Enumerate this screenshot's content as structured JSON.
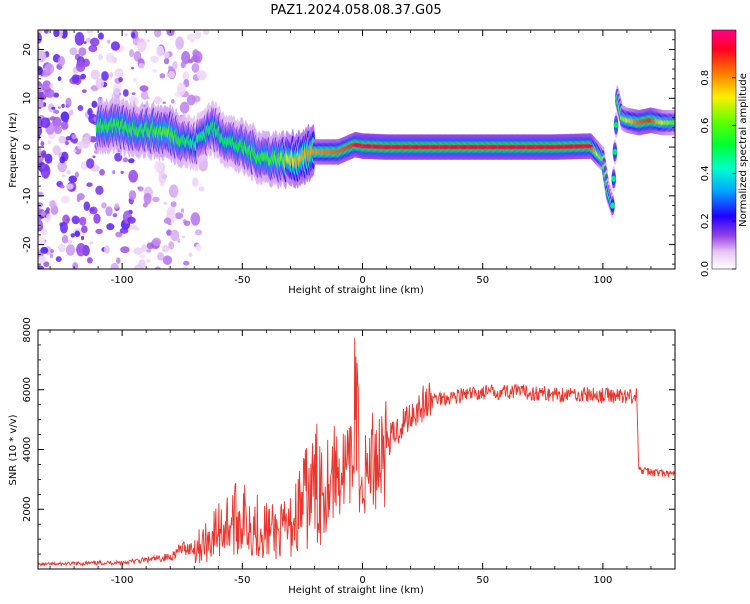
{
  "page_title": "PAZ1.2024.058.08.37.G05",
  "colors": {
    "snr_line": "#e8352e",
    "frame": "#000000",
    "background": "#ffffff"
  },
  "chart_data": [
    {
      "type": "heatmap",
      "title": "PAZ1.2024.058.08.37.G05",
      "xlabel": "Height of straight line (km)",
      "ylabel": "Frequency (Hz)",
      "xlim": [
        -135,
        130
      ],
      "ylim": [
        -25,
        24
      ],
      "x_ticks": [
        -100,
        -50,
        0,
        50,
        100
      ],
      "y_ticks": [
        -20,
        -10,
        0,
        10,
        20
      ],
      "colorbar": {
        "label": "Normalized spectral amplitude",
        "range": [
          0,
          1
        ],
        "ticks": [
          "0.0",
          "0.2",
          "0.4",
          "0.6",
          "0.8"
        ],
        "colormap": "gist_rainbow_r"
      },
      "ridge": {
        "x": [
          -110,
          -100,
          -90,
          -80,
          -70,
          -63,
          -55,
          -48,
          -42,
          -35,
          -28,
          -20,
          -10,
          -3,
          0,
          10,
          20,
          40,
          60,
          80,
          95,
          100,
          102,
          104,
          106,
          108,
          110,
          115,
          120,
          125,
          130
        ],
        "freq": [
          4.5,
          4.0,
          3.5,
          2.8,
          0.5,
          4.0,
          1.0,
          -0.5,
          -2.0,
          -2.5,
          -2.5,
          -1.0,
          -1.0,
          0.5,
          0.2,
          0.0,
          0.0,
          0.0,
          0.0,
          0.0,
          0.2,
          -2.5,
          -9.0,
          -12.0,
          10.0,
          6.0,
          5.5,
          5.0,
          5.5,
          5.0,
          5.0
        ],
        "amplitude": [
          0.55,
          0.55,
          0.55,
          0.6,
          0.45,
          0.5,
          0.5,
          0.55,
          0.55,
          0.6,
          0.75,
          0.8,
          0.85,
          0.9,
          0.95,
          0.95,
          0.95,
          0.95,
          0.95,
          0.95,
          0.9,
          0.6,
          0.5,
          0.45,
          0.55,
          0.65,
          0.7,
          0.85,
          0.9,
          0.7,
          0.6
        ]
      }
    },
    {
      "type": "line",
      "xlabel": "Height of straight line (km)",
      "ylabel": "SNR (10 * v/v)",
      "xlim": [
        -135,
        130
      ],
      "ylim": [
        0,
        8000
      ],
      "x_ticks": [
        -100,
        -50,
        0,
        50,
        100
      ],
      "y_ticks": [
        2000,
        4000,
        6000,
        8000
      ],
      "series": [
        {
          "x": [
            -135,
            -120,
            -100,
            -90,
            -80,
            -75,
            -70,
            -65,
            -60,
            -55,
            -50,
            -45,
            -40,
            -35,
            -30,
            -25,
            -20,
            -15,
            -10,
            -5,
            -3,
            -1,
            1,
            3,
            5,
            10,
            15,
            20,
            25,
            30,
            40,
            50,
            60,
            70,
            80,
            90,
            100,
            110,
            114,
            115,
            120,
            125,
            130
          ],
          "y": [
            150,
            180,
            220,
            300,
            400,
            700,
            700,
            900,
            1300,
            1600,
            1700,
            1500,
            1300,
            1200,
            1400,
            2200,
            2700,
            3100,
            3300,
            3200,
            5500,
            3300,
            3000,
            3600,
            3700,
            4200,
            4700,
            5200,
            5500,
            5700,
            5800,
            5900,
            5950,
            5900,
            5850,
            5850,
            5800,
            5800,
            5800,
            3300,
            3250,
            3200,
            3150
          ]
        }
      ]
    }
  ]
}
